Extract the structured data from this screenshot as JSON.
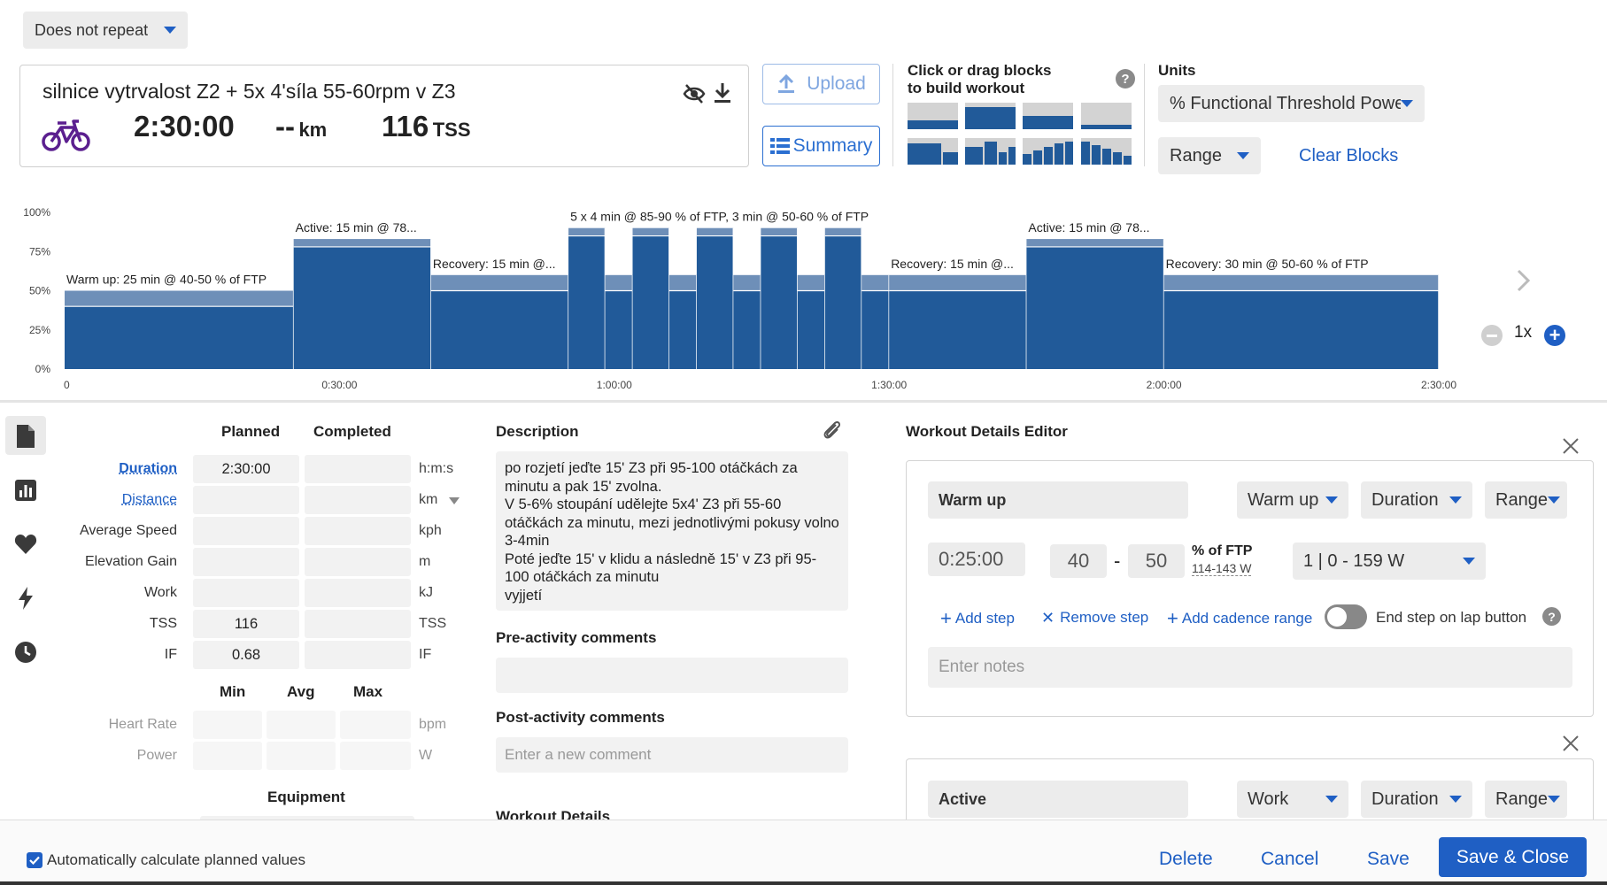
{
  "repeat_select": "Does not repeat",
  "workout": {
    "title": "silnice vytrvalost Z2 + 5x 4'síla 55-60rpm v Z3",
    "duration": "2:30:00",
    "distance": "--",
    "distance_unit": "km",
    "tss": "116",
    "tss_unit": "TSS"
  },
  "buttons": {
    "upload": "Upload",
    "summary": "Summary"
  },
  "builder": {
    "title_line1": "Click or drag blocks",
    "title_line2": "to build workout",
    "help": "?"
  },
  "units": {
    "label": "Units",
    "value": "% Functional Threshold Powe",
    "range": "Range",
    "clear": "Clear Blocks"
  },
  "chart_data": {
    "type": "bar",
    "y_ticks": [
      "100%",
      "75%",
      "50%",
      "25%",
      "0%"
    ],
    "x_ticks": [
      "0",
      "0:30:00",
      "1:00:00",
      "1:30:00",
      "2:00:00",
      "2:30:00"
    ],
    "xlim_minutes": [
      0,
      150
    ],
    "ylim_percent": [
      0,
      100
    ],
    "segments": [
      {
        "start": 0,
        "end": 25,
        "low": 40,
        "high": 50,
        "label": "Warm up: 25 min @ 40-50 % of FTP"
      },
      {
        "start": 25,
        "end": 40,
        "low": 78,
        "high": 83,
        "label": "Active: 15 min @ 78..."
      },
      {
        "start": 40,
        "end": 55,
        "low": 50,
        "high": 60,
        "label": "Recovery: 15 min @..."
      },
      {
        "start": 55,
        "end": 59,
        "low": 85,
        "high": 90,
        "label": "5 x 4 min @ 85-90 % of FTP, 3 min @ 50-60 % of FTP"
      },
      {
        "start": 59,
        "end": 62,
        "low": 50,
        "high": 60,
        "label": ""
      },
      {
        "start": 62,
        "end": 66,
        "low": 85,
        "high": 90,
        "label": ""
      },
      {
        "start": 66,
        "end": 69,
        "low": 50,
        "high": 60,
        "label": ""
      },
      {
        "start": 69,
        "end": 73,
        "low": 85,
        "high": 90,
        "label": ""
      },
      {
        "start": 73,
        "end": 76,
        "low": 50,
        "high": 60,
        "label": ""
      },
      {
        "start": 76,
        "end": 80,
        "low": 85,
        "high": 90,
        "label": ""
      },
      {
        "start": 80,
        "end": 83,
        "low": 50,
        "high": 60,
        "label": ""
      },
      {
        "start": 83,
        "end": 87,
        "low": 85,
        "high": 90,
        "label": ""
      },
      {
        "start": 87,
        "end": 90,
        "low": 50,
        "high": 60,
        "label": ""
      },
      {
        "start": 90,
        "end": 105,
        "low": 50,
        "high": 60,
        "label": "Recovery: 15 min @..."
      },
      {
        "start": 105,
        "end": 120,
        "low": 78,
        "high": 83,
        "label": "Active: 15 min @ 78..."
      },
      {
        "start": 120,
        "end": 150,
        "low": 50,
        "high": 60,
        "label": "Recovery: 30 min @ 50-60 % of FTP"
      }
    ]
  },
  "zoom": {
    "value": "1x"
  },
  "metrics": {
    "planned_header": "Planned",
    "completed_header": "Completed",
    "rows": [
      {
        "label": "Duration",
        "planned": "2:30:00",
        "completed": "",
        "unit": "h:m:s",
        "link": true
      },
      {
        "label": "Distance",
        "planned": "",
        "completed": "",
        "unit": "km",
        "link": true
      },
      {
        "label": "Average Speed",
        "planned": "",
        "completed": "",
        "unit": "kph",
        "link": false
      },
      {
        "label": "Elevation Gain",
        "planned": "",
        "completed": "",
        "unit": "m",
        "link": false
      },
      {
        "label": "Work",
        "planned": "",
        "completed": "",
        "unit": "kJ",
        "link": false
      },
      {
        "label": "TSS",
        "planned": "116",
        "completed": "",
        "unit": "TSS",
        "link": false
      },
      {
        "label": "IF",
        "planned": "0.68",
        "completed": "",
        "unit": "IF",
        "link": false
      }
    ],
    "mam_headers": [
      "Min",
      "Avg",
      "Max"
    ],
    "mam_rows": [
      {
        "label": "Heart Rate",
        "unit": "bpm"
      },
      {
        "label": "Power",
        "unit": "W"
      }
    ],
    "equipment": "Equipment"
  },
  "description": {
    "title": "Description",
    "text": "po rozjetí jeďte 15' Z3 při 95-100 otáčkách za minutu a pak 15' zvolna.\nV 5-6% stoupání udělejte 5x4' Z3 při 55-60 otáčkách za minutu, mezi jednotlivými pokusy volno 3-4min\nPoté jeďte 15' v klidu a následně 15' v Z3 při 95-100 otáčkách za minutu\nvyjjetí",
    "pre_title": "Pre-activity comments",
    "post_title": "Post-activity comments",
    "post_placeholder": "Enter a new comment",
    "details_title": "Workout Details"
  },
  "editor": {
    "title": "Workout Details Editor",
    "step1": {
      "name": "Warm up",
      "type": "Warm up",
      "measure": "Duration",
      "range": "Range",
      "duration": "0:25:00",
      "low": "40",
      "dash": "-",
      "high": "50",
      "unit": "% of FTP",
      "watts": "114-143 W",
      "zone": "1 | 0 - 159 W",
      "add_step": "Add step",
      "remove_step": "Remove step",
      "add_cadence": "Add cadence range",
      "end_step": "End step on lap button",
      "help": "?",
      "notes_placeholder": "Enter notes"
    },
    "step2": {
      "name": "Active",
      "type": "Work",
      "measure": "Duration",
      "range": "Range"
    }
  },
  "footer": {
    "auto_calc": "Automatically calculate planned values",
    "delete": "Delete",
    "cancel": "Cancel",
    "save": "Save",
    "save_close": "Save & Close"
  }
}
